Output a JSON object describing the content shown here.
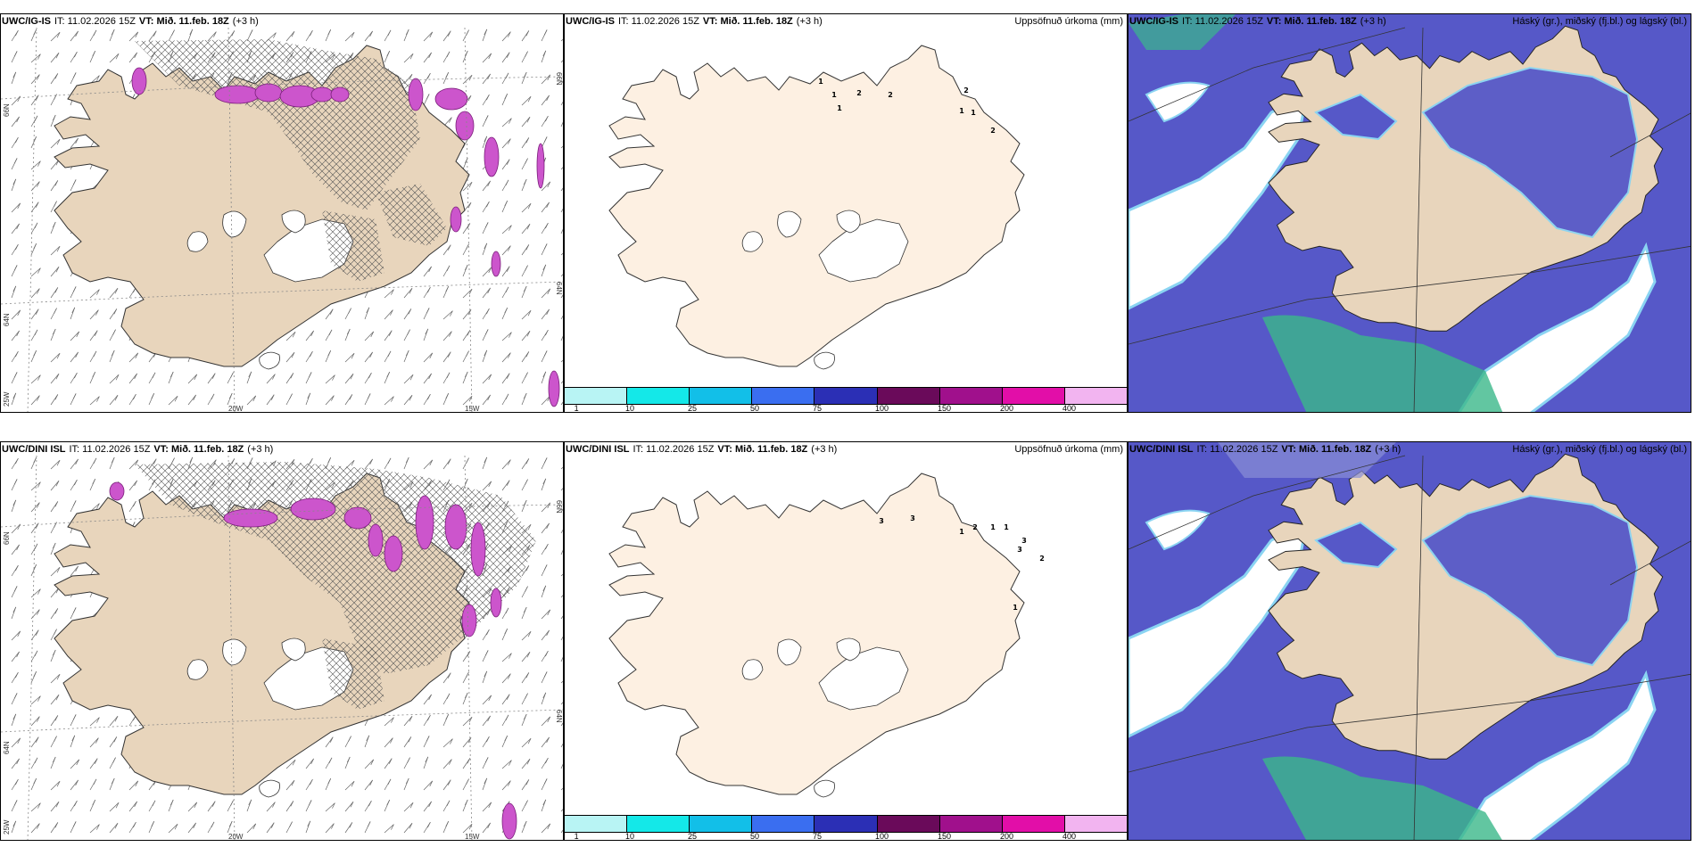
{
  "panels": [
    {
      "model": "UWC/IG-IS",
      "it_label": "IT: 11.02.2026 15Z",
      "vt_label": "VT: Mið. 11.feb. 18Z",
      "lead": "(+3 h)",
      "right_title": "",
      "axis_labels": {
        "lat66": "66N",
        "lat64": "64N",
        "lat64r": "64N",
        "lat66r": "66N",
        "lon25": "25W",
        "lon20": "20W",
        "lon15": "15W"
      }
    },
    {
      "model": "UWC/IG-IS",
      "it_label": "IT: 11.02.2026 15Z",
      "vt_label": "VT: Mið. 11.feb. 18Z",
      "lead": "(+3 h)",
      "right_title": "Uppsöfnuð úrkoma (mm)"
    },
    {
      "model": "UWC/IG-IS",
      "it_label": "IT: 11.02.2026 15Z",
      "vt_label": "VT: Mið. 11.feb. 18Z",
      "lead": "(+3 h)",
      "right_title": "Háský (gr.), miðský (fj.bl.) og lágský (bl.)"
    },
    {
      "model": "UWC/DINI ISL",
      "it_label": "IT: 11.02.2026 15Z",
      "vt_label": "VT: Mið. 11.feb. 18Z",
      "lead": "(+3 h)",
      "right_title": "",
      "axis_labels": {
        "lat66": "66N",
        "lat64": "64N",
        "lat64r": "64N",
        "lat66r": "66N",
        "lon25": "25W",
        "lon20": "20W",
        "lon15": "15W"
      }
    },
    {
      "model": "UWC/DINI ISL",
      "it_label": "IT: 11.02.2026 15Z",
      "vt_label": "VT: Mið. 11.feb. 18Z",
      "lead": "(+3 h)",
      "right_title": "Uppsöfnuð úrkoma (mm)"
    },
    {
      "model": "UWC/DINI ISL",
      "it_label": "IT: 11.02.2026 15Z",
      "vt_label": "VT: Mið. 11.feb. 18Z",
      "lead": "(+3 h)",
      "right_title": "Háský (gr.), miðský (fj.bl.) og lágský (bl.)"
    }
  ],
  "precip_colorbar": {
    "labels": [
      "1",
      "10",
      "25",
      "50",
      "75",
      "100",
      "150",
      "200",
      "400"
    ],
    "colors": [
      "#b8f4f4",
      "#14e8e8",
      "#12bfe8",
      "#3a6ef0",
      "#2b2fb5",
      "#6a0a5a",
      "#a0108c",
      "#e20ea8",
      "#f2b4f0"
    ]
  },
  "precip_values_top": [
    "1",
    "1",
    "1",
    "2",
    "2",
    "2",
    "1",
    "1",
    "2"
  ],
  "precip_values_bottom": [
    "3",
    "3",
    "1",
    "2",
    "1",
    "1",
    "3",
    "3",
    "2",
    "1"
  ],
  "colors": {
    "land": "#e8d5bc",
    "land_light": "#fdf0e2",
    "cloud_blue": "#5658c8",
    "cloud_light": "#8ad4f2",
    "cloud_green": "#3bb88a",
    "snow_magenta": "#cc55cc"
  }
}
